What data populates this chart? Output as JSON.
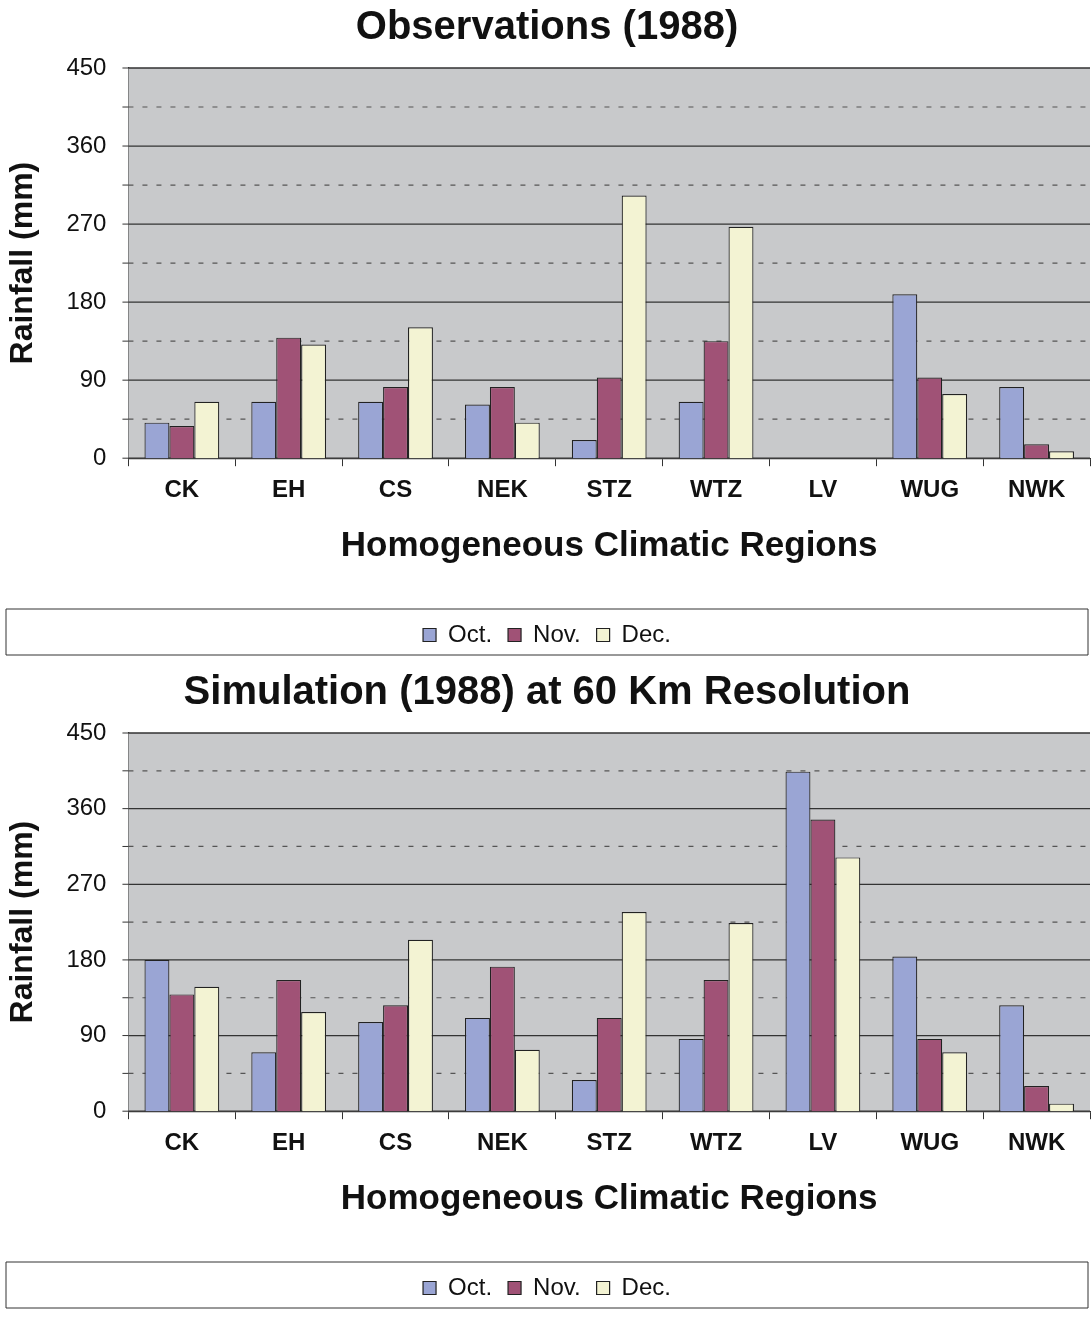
{
  "chart_data": [
    {
      "type": "bar",
      "title": "Observations (1988)",
      "xlabel": "Homogeneous Climatic Regions",
      "ylabel": "Rainfall (mm)",
      "categories": [
        "CK",
        "EH",
        "CS",
        "NEK",
        "STZ",
        "WTZ",
        "LV",
        "WUG",
        "NWK"
      ],
      "series": [
        {
          "name": "Oct.",
          "color": "#9aa5d4",
          "values": [
            41,
            65,
            65,
            62,
            21,
            65,
            0,
            189,
            82
          ]
        },
        {
          "name": "Nov.",
          "color": "#a05276",
          "values": [
            37,
            139,
            82,
            82,
            93,
            135,
            0,
            93,
            16
          ]
        },
        {
          "name": "Dec.",
          "color": "#f3f3d3",
          "values": [
            65,
            131,
            151,
            41,
            303,
            267,
            0,
            74,
            8
          ]
        }
      ],
      "ylim": [
        0,
        450
      ],
      "yticks": [
        0,
        {
          "value": 45,
          "label": null
        },
        90,
        {
          "value": 135,
          "label": null
        },
        180,
        {
          "value": 225,
          "label": null
        },
        270,
        {
          "value": 315,
          "label": null
        },
        360,
        {
          "value": 405,
          "label": null
        },
        450
      ],
      "grid": "y",
      "legend": "bottom"
    },
    {
      "type": "bar",
      "title": "Simulation (1988) at 60 Km Resolution",
      "xlabel": "Homogeneous Climatic Regions",
      "ylabel": "Rainfall (mm)",
      "categories": [
        "CK",
        "EH",
        "CS",
        "NEK",
        "STZ",
        "WTZ",
        "LV",
        "WUG",
        "NWK"
      ],
      "series": [
        {
          "name": "Oct.",
          "color": "#9aa5d4",
          "values": [
            180,
            70,
            106,
            111,
            37,
            86,
            404,
            184,
            126
          ]
        },
        {
          "name": "Nov.",
          "color": "#a05276",
          "values": [
            139,
            156,
            126,
            172,
            111,
            156,
            347,
            86,
            30
          ]
        },
        {
          "name": "Dec.",
          "color": "#f3f3d3",
          "values": [
            148,
            118,
            204,
            73,
            237,
            224,
            302,
            70,
            9
          ]
        }
      ],
      "ylim": [
        0,
        450
      ],
      "yticks": [
        0,
        {
          "value": 45,
          "label": null
        },
        90,
        {
          "value": 135,
          "label": null
        },
        180,
        {
          "value": 225,
          "label": null
        },
        270,
        {
          "value": 315,
          "label": null
        },
        360,
        {
          "value": 405,
          "label": null
        },
        450
      ],
      "grid": "y",
      "legend": "bottom"
    }
  ]
}
